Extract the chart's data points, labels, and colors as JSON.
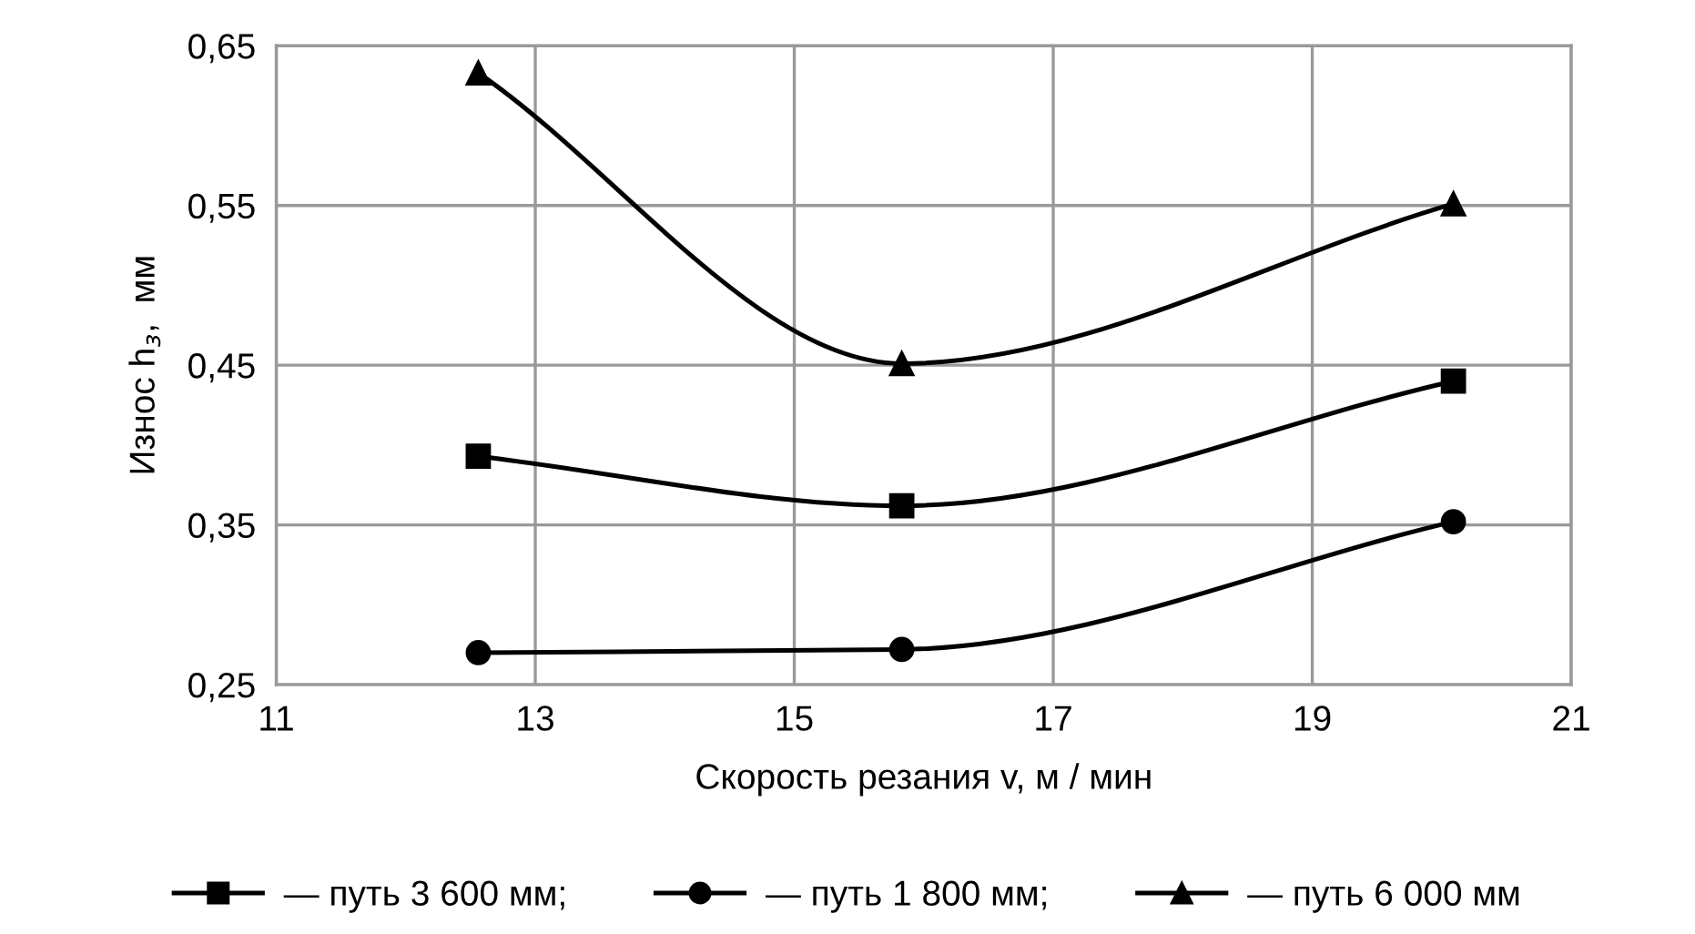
{
  "chart_data": {
    "type": "line",
    "xlabel": "Скорость резания v, м / мин",
    "ylabel": "Износ h$_{з}$,  мм",
    "xlim": [
      11,
      21
    ],
    "xticks": [
      11,
      13,
      15,
      17,
      19,
      21
    ],
    "ylim": [
      0.25,
      0.65
    ],
    "yticks": [
      {
        "value": 0.25,
        "label": "0,25"
      },
      {
        "value": 0.35,
        "label": "0,35"
      },
      {
        "value": 0.45,
        "label": "0,45"
      },
      {
        "value": 0.55,
        "label": "0,55"
      },
      {
        "value": 0.65,
        "label": "0,65"
      }
    ],
    "grid": true,
    "legend": "bottom",
    "line_style": "solid",
    "series": [
      {
        "name": "— путь 3 600 мм;",
        "color": "#000000",
        "marker": "square",
        "x": [
          12.56,
          15.83,
          20.09
        ],
        "values": [
          0.393,
          0.362,
          0.44
        ]
      },
      {
        "name": "— путь 1 800 мм;",
        "color": "#000000",
        "marker": "circle",
        "x": [
          12.56,
          15.83,
          20.09
        ],
        "values": [
          0.27,
          0.272,
          0.352
        ]
      },
      {
        "name": "— путь 6 000 мм",
        "color": "#000000",
        "marker": "triangle",
        "x": [
          12.56,
          15.83,
          20.09
        ],
        "values": [
          0.633,
          0.451,
          0.551
        ]
      }
    ]
  }
}
